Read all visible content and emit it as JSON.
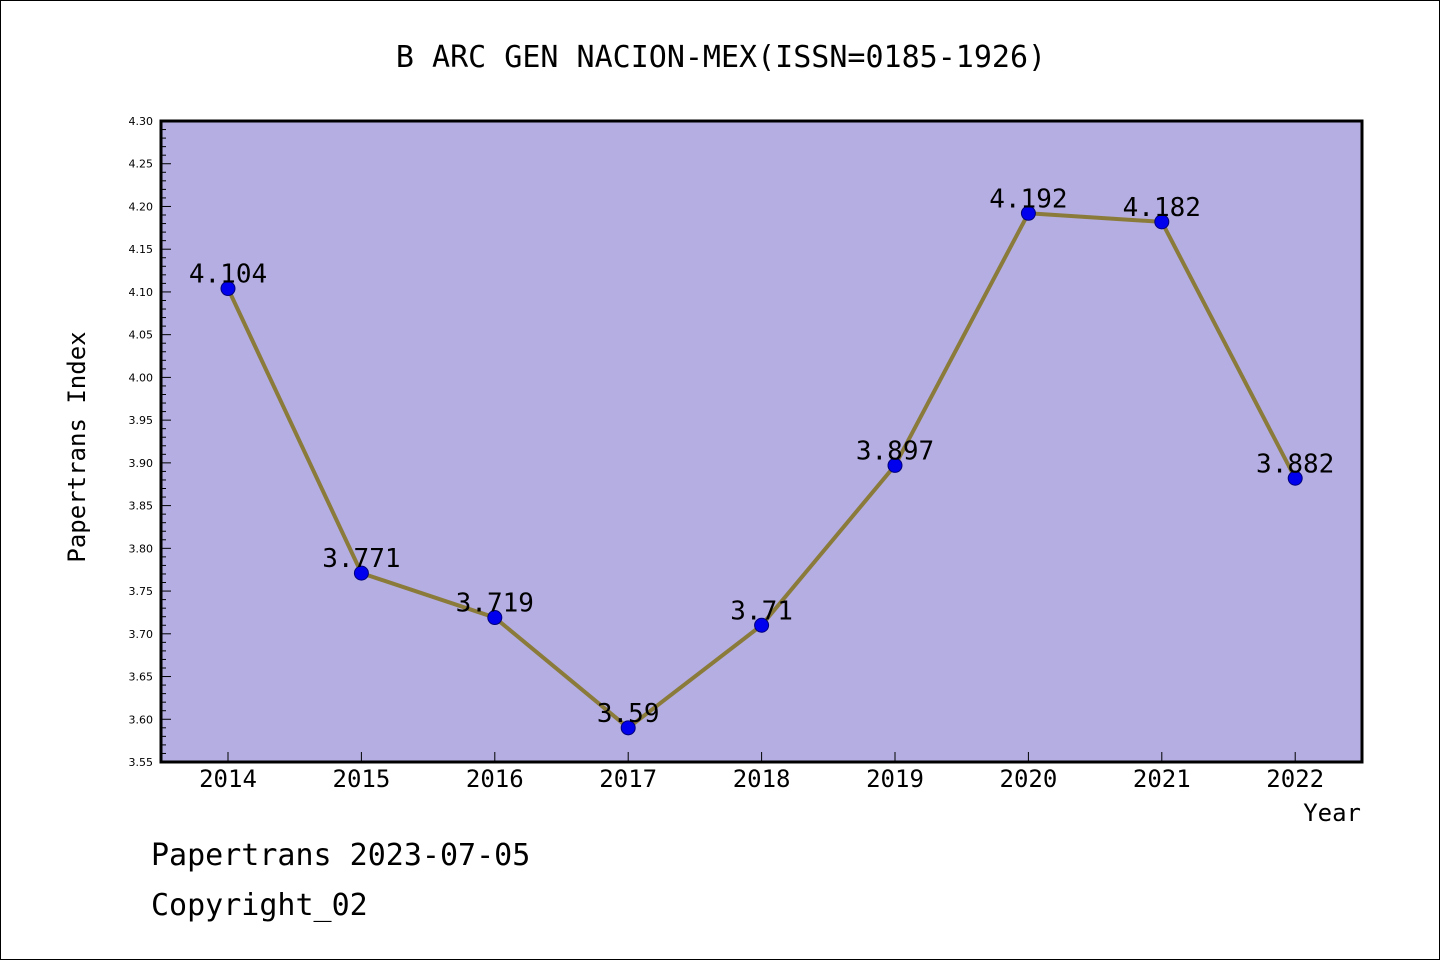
{
  "chart_data": {
    "type": "line",
    "title": "B ARC GEN NACION-MEX(ISSN=0185-1926)",
    "xlabel": "Year",
    "ylabel": "Papertrans Index",
    "x": [
      "2014",
      "2015",
      "2016",
      "2017",
      "2018",
      "2019",
      "2020",
      "2021",
      "2022"
    ],
    "series": [
      {
        "values": [
          4.104,
          3.771,
          3.719,
          3.59,
          3.71,
          3.897,
          4.192,
          4.182,
          3.882
        ],
        "labels": [
          "4.104",
          "3.771",
          "3.719",
          "3.59",
          "3.71",
          "3.897",
          "4.192",
          "4.182",
          "3.882"
        ]
      }
    ],
    "ylim": [
      3.55,
      4.3
    ],
    "yticks": [
      "3.55",
      "3.60",
      "3.65",
      "3.70",
      "3.75",
      "3.80",
      "3.85",
      "3.90",
      "3.95",
      "4.00",
      "4.05",
      "4.10",
      "4.15",
      "4.20",
      "4.25",
      "4.30"
    ],
    "grid": false,
    "colors": {
      "plot_background": "#b4aee2",
      "line": "#8b7b3a",
      "marker": "#0000ee",
      "marker_edge": "#00007a"
    }
  },
  "footer": {
    "line1": "Papertrans 2023-07-05",
    "line2": "Copyright_02"
  }
}
